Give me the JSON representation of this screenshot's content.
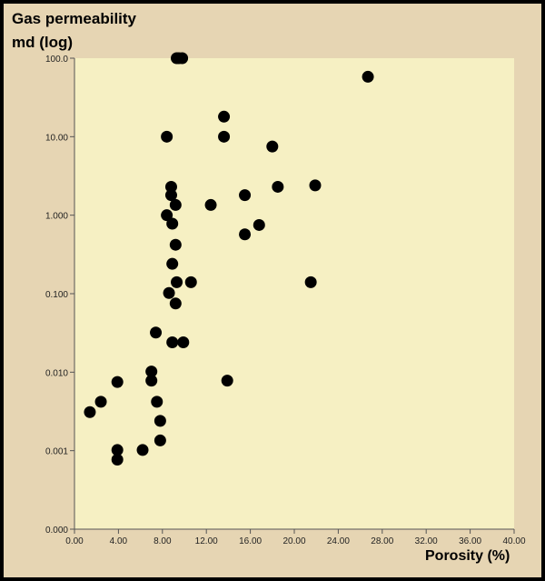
{
  "colors": {
    "background": "#e6d5b3",
    "plot_area": "#f6f0c3",
    "border": "#000000",
    "marker": "#000000"
  },
  "chart_data": {
    "type": "scatter",
    "title": "",
    "ylabel_line1": "Gas permeability",
    "ylabel_line2": "md (log)",
    "xlabel": "Porosity (%)",
    "x_scale": "linear",
    "y_scale": "log",
    "xlim": [
      0,
      40
    ],
    "ylim": [
      0.0001,
      100
    ],
    "x_ticks": [
      0,
      4,
      8,
      12,
      16,
      20,
      24,
      28,
      32,
      36,
      40
    ],
    "x_tick_labels": [
      "0.00",
      "4.00",
      "8.00",
      "12.00",
      "16.00",
      "20.00",
      "24.00",
      "28.00",
      "32.00",
      "36.00",
      "40.00"
    ],
    "y_ticks": [
      0.0001,
      0.001,
      0.01,
      0.1,
      1,
      10,
      100
    ],
    "y_tick_labels": [
      "0.000",
      "0.001",
      "0.010",
      "0.100",
      "1.000",
      "10.00",
      "100.0"
    ],
    "grid": false,
    "legend": "none",
    "points": [
      {
        "x": 9.3,
        "y": 100
      },
      {
        "x": 9.5,
        "y": 100
      },
      {
        "x": 9.8,
        "y": 100
      },
      {
        "x": 26.7,
        "y": 58
      },
      {
        "x": 13.6,
        "y": 18
      },
      {
        "x": 13.6,
        "y": 10
      },
      {
        "x": 8.4,
        "y": 10
      },
      {
        "x": 18.0,
        "y": 7.5
      },
      {
        "x": 8.8,
        "y": 2.3
      },
      {
        "x": 8.8,
        "y": 1.8
      },
      {
        "x": 18.5,
        "y": 2.3
      },
      {
        "x": 21.9,
        "y": 2.4
      },
      {
        "x": 15.5,
        "y": 1.8
      },
      {
        "x": 9.2,
        "y": 1.35
      },
      {
        "x": 12.4,
        "y": 1.35
      },
      {
        "x": 8.4,
        "y": 1.0
      },
      {
        "x": 8.9,
        "y": 0.78
      },
      {
        "x": 16.8,
        "y": 0.75
      },
      {
        "x": 15.5,
        "y": 0.57
      },
      {
        "x": 9.2,
        "y": 0.42
      },
      {
        "x": 8.9,
        "y": 0.24
      },
      {
        "x": 9.3,
        "y": 0.14
      },
      {
        "x": 10.6,
        "y": 0.14
      },
      {
        "x": 21.5,
        "y": 0.14
      },
      {
        "x": 8.6,
        "y": 0.102
      },
      {
        "x": 9.2,
        "y": 0.075
      },
      {
        "x": 7.4,
        "y": 0.032
      },
      {
        "x": 8.9,
        "y": 0.024
      },
      {
        "x": 9.9,
        "y": 0.024
      },
      {
        "x": 7.0,
        "y": 0.0102
      },
      {
        "x": 7.0,
        "y": 0.0078
      },
      {
        "x": 13.9,
        "y": 0.0078
      },
      {
        "x": 3.9,
        "y": 0.0075
      },
      {
        "x": 7.5,
        "y": 0.0042
      },
      {
        "x": 2.4,
        "y": 0.0042
      },
      {
        "x": 1.4,
        "y": 0.0031
      },
      {
        "x": 7.8,
        "y": 0.0024
      },
      {
        "x": 7.8,
        "y": 0.00135
      },
      {
        "x": 3.9,
        "y": 0.00102
      },
      {
        "x": 3.9,
        "y": 0.00077
      },
      {
        "x": 6.2,
        "y": 0.00102
      }
    ]
  }
}
